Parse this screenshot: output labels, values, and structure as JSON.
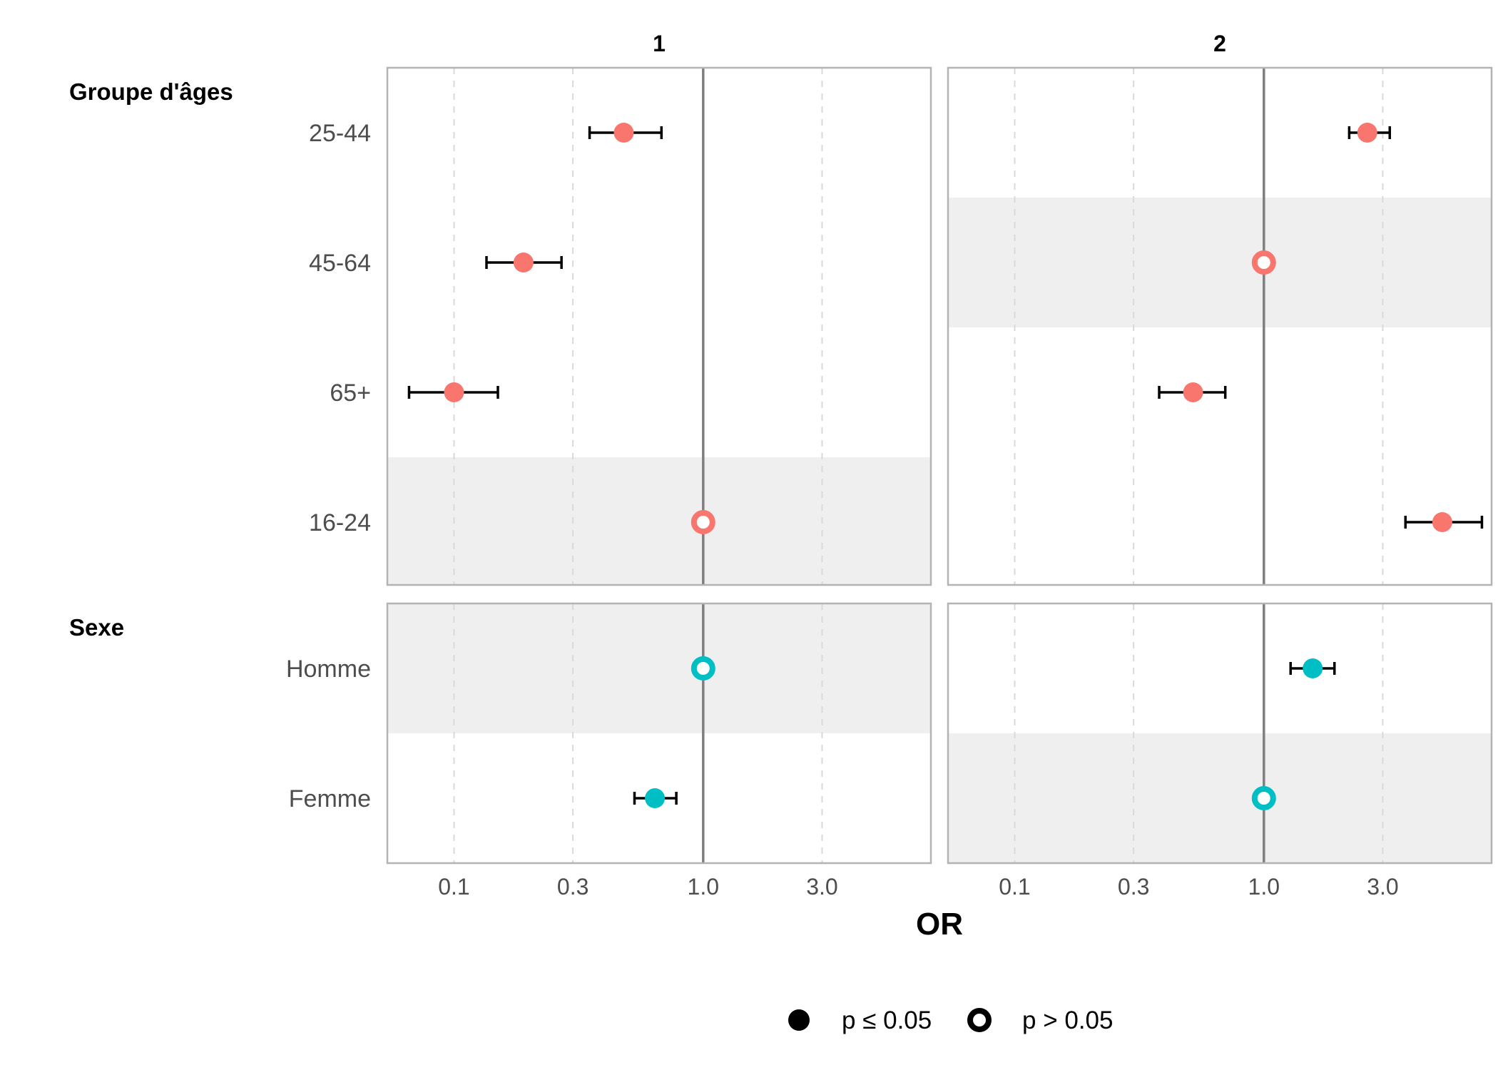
{
  "chart_data": {
    "type": "scatter",
    "subtype": "forest-plot",
    "x_scale": "log",
    "xlabel": "OR",
    "x_ticks": [
      "0.1",
      "0.3",
      "1.0",
      "3.0"
    ],
    "xlim": [
      0.054,
      8.2
    ],
    "reference_line": 1.0,
    "grid": true,
    "legend_position": "bottom",
    "legend": [
      {
        "key": "sig",
        "label": "p ≤ 0.05"
      },
      {
        "key": "nonsig",
        "label": "p > 0.05"
      }
    ],
    "panels": [
      "1",
      "2"
    ],
    "groups": [
      {
        "label": "Groupe d'âges",
        "color": "#F8766D",
        "categories": [
          "25-44",
          "45-64",
          "65+",
          "16-24"
        ],
        "estimates": {
          "1": [
            {
              "or": 0.48,
              "lo": 0.35,
              "hi": 0.68,
              "sig": true
            },
            {
              "or": 0.19,
              "lo": 0.135,
              "hi": 0.27,
              "sig": true
            },
            {
              "or": 0.1,
              "lo": 0.066,
              "hi": 0.15,
              "sig": true
            },
            {
              "or": 1.0,
              "lo": null,
              "hi": null,
              "sig": false
            }
          ],
          "2": [
            {
              "or": 2.6,
              "lo": 2.2,
              "hi": 3.2,
              "sig": true
            },
            {
              "or": 1.0,
              "lo": null,
              "hi": null,
              "sig": false
            },
            {
              "or": 0.52,
              "lo": 0.38,
              "hi": 0.7,
              "sig": true
            },
            {
              "or": 5.2,
              "lo": 3.7,
              "hi": 7.5,
              "sig": true
            }
          ]
        }
      },
      {
        "label": "Sexe",
        "color": "#00BFC4",
        "categories": [
          "Homme",
          "Femme"
        ],
        "estimates": {
          "1": [
            {
              "or": 1.0,
              "lo": null,
              "hi": null,
              "sig": false
            },
            {
              "or": 0.64,
              "lo": 0.53,
              "hi": 0.78,
              "sig": true
            }
          ],
          "2": [
            {
              "or": 1.57,
              "lo": 1.28,
              "hi": 1.92,
              "sig": true
            },
            {
              "or": 1.0,
              "lo": null,
              "hi": null,
              "sig": false
            }
          ]
        }
      }
    ]
  }
}
